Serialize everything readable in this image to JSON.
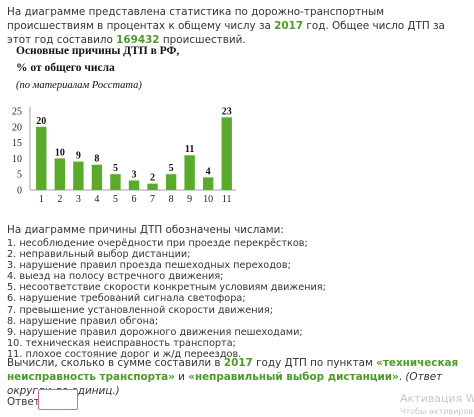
{
  "intro": {
    "part1": "На диаграмме представлена статистика по дорожно-транспортным происшествиям в процентах к общему числу за ",
    "year": "2017",
    "part2": " год. Общее число ДТП за этот год составило ",
    "total": "169432",
    "part3": " происшествий."
  },
  "chart_data": {
    "type": "bar",
    "title_line1": "Основные причины ДТП в РФ,",
    "title_line2": "% от общего числа",
    "subtitle": "(по материалам Росстата)",
    "categories": [
      "1",
      "2",
      "3",
      "4",
      "5",
      "6",
      "7",
      "8",
      "9",
      "10",
      "11"
    ],
    "values": [
      20,
      10,
      9,
      8,
      5,
      3,
      2,
      5,
      11,
      4,
      23
    ],
    "y_ticks": [
      "0",
      "5",
      "10",
      "15",
      "20",
      "25"
    ],
    "ylim": [
      0,
      25
    ],
    "bar_color": "#5aab2b",
    "grid": false
  },
  "legend": {
    "header": "На диаграмме причины ДТП обозначены числами:",
    "items": [
      "1.  несоблюдение очерёдности при проезде перекрёстков;",
      "2.  неправильный выбор дистанции;",
      "3.  нарушение правил проезда пешеходных переходов;",
      "4.  выезд на полосу встречного движения;",
      "5.  несоответствие скорости конкретным условиям движения;",
      "6.  нарушение требований сигнала светофора;",
      "7.  превышение установленной скорости движения;",
      "8.  нарушение правил обгона;",
      "9.  нарушение правил дорожного движения пешеходами;",
      "10. техническая неисправность транспорта;",
      "11. плохое состояние дорог и ж/д переездов."
    ]
  },
  "question": {
    "part1": "Вычисли, сколько в сумме составили в ",
    "year": "2017",
    "part2": " году ДТП по пунктам ",
    "item1": "«техническая неисправность транспорта»",
    "part3": " и ",
    "item2": "«неправильный выбор дистанции»",
    "part4": ". ",
    "hint": "(Ответ округли до единиц.)"
  },
  "answer": {
    "label": "Ответ:",
    "value": ""
  },
  "watermark": {
    "line1": "Активация Wi",
    "line2": "Чтобы активиров"
  }
}
